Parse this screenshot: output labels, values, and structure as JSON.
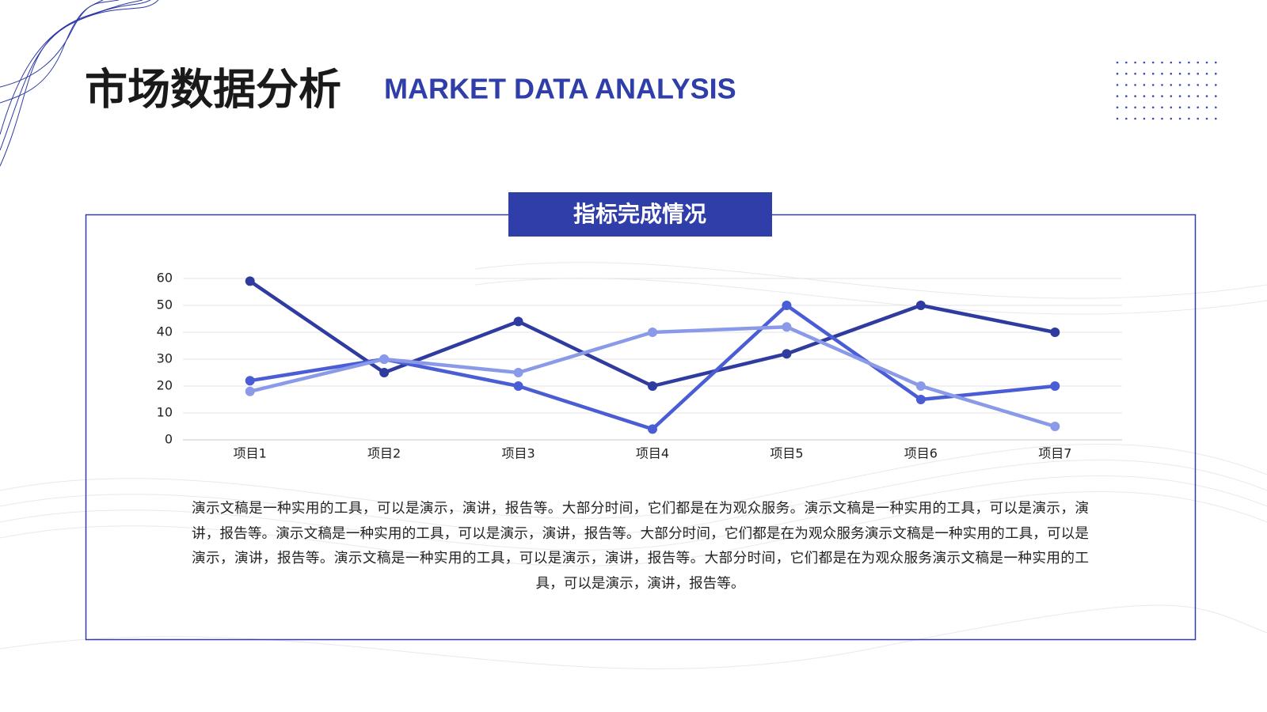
{
  "header": {
    "title": "市场数据分析",
    "subtitle": "MARKET DATA ANALYSIS"
  },
  "chart_data": {
    "type": "line",
    "title": "指标完成情况",
    "categories": [
      "项目1",
      "项目2",
      "项目3",
      "项目4",
      "项目5",
      "项目6",
      "项目7"
    ],
    "series": [
      {
        "color": "#2f3b9e",
        "values": [
          59,
          25,
          44,
          20,
          32,
          50,
          40
        ]
      },
      {
        "color": "#4a5dd4",
        "values": [
          22,
          30,
          20,
          4,
          50,
          15,
          20
        ]
      },
      {
        "color": "#8a9ae8",
        "values": [
          18,
          30,
          25,
          40,
          42,
          20,
          5
        ]
      }
    ],
    "ylim": [
      0,
      60
    ],
    "yticks": [
      0,
      10,
      20,
      30,
      40,
      50,
      60
    ],
    "grid": true
  },
  "body": {
    "text": "演示文稿是一种实用的工具，可以是演示，演讲，报告等。大部分时间，它们都是在为观众服务。演示文稿是一种实用的工具，可以是演示，演讲，报告等。演示文稿是一种实用的工具，可以是演示，演讲，报告等。大部分时间，它们都是在为观众服务演示文稿是一种实用的工具，可以是演示，演讲，报告等。演示文稿是一种实用的工具，可以是演示，演讲，报告等。大部分时间，它们都是在为观众服务演示文稿是一种实用的工具，可以是演示，演讲，报告等。"
  }
}
